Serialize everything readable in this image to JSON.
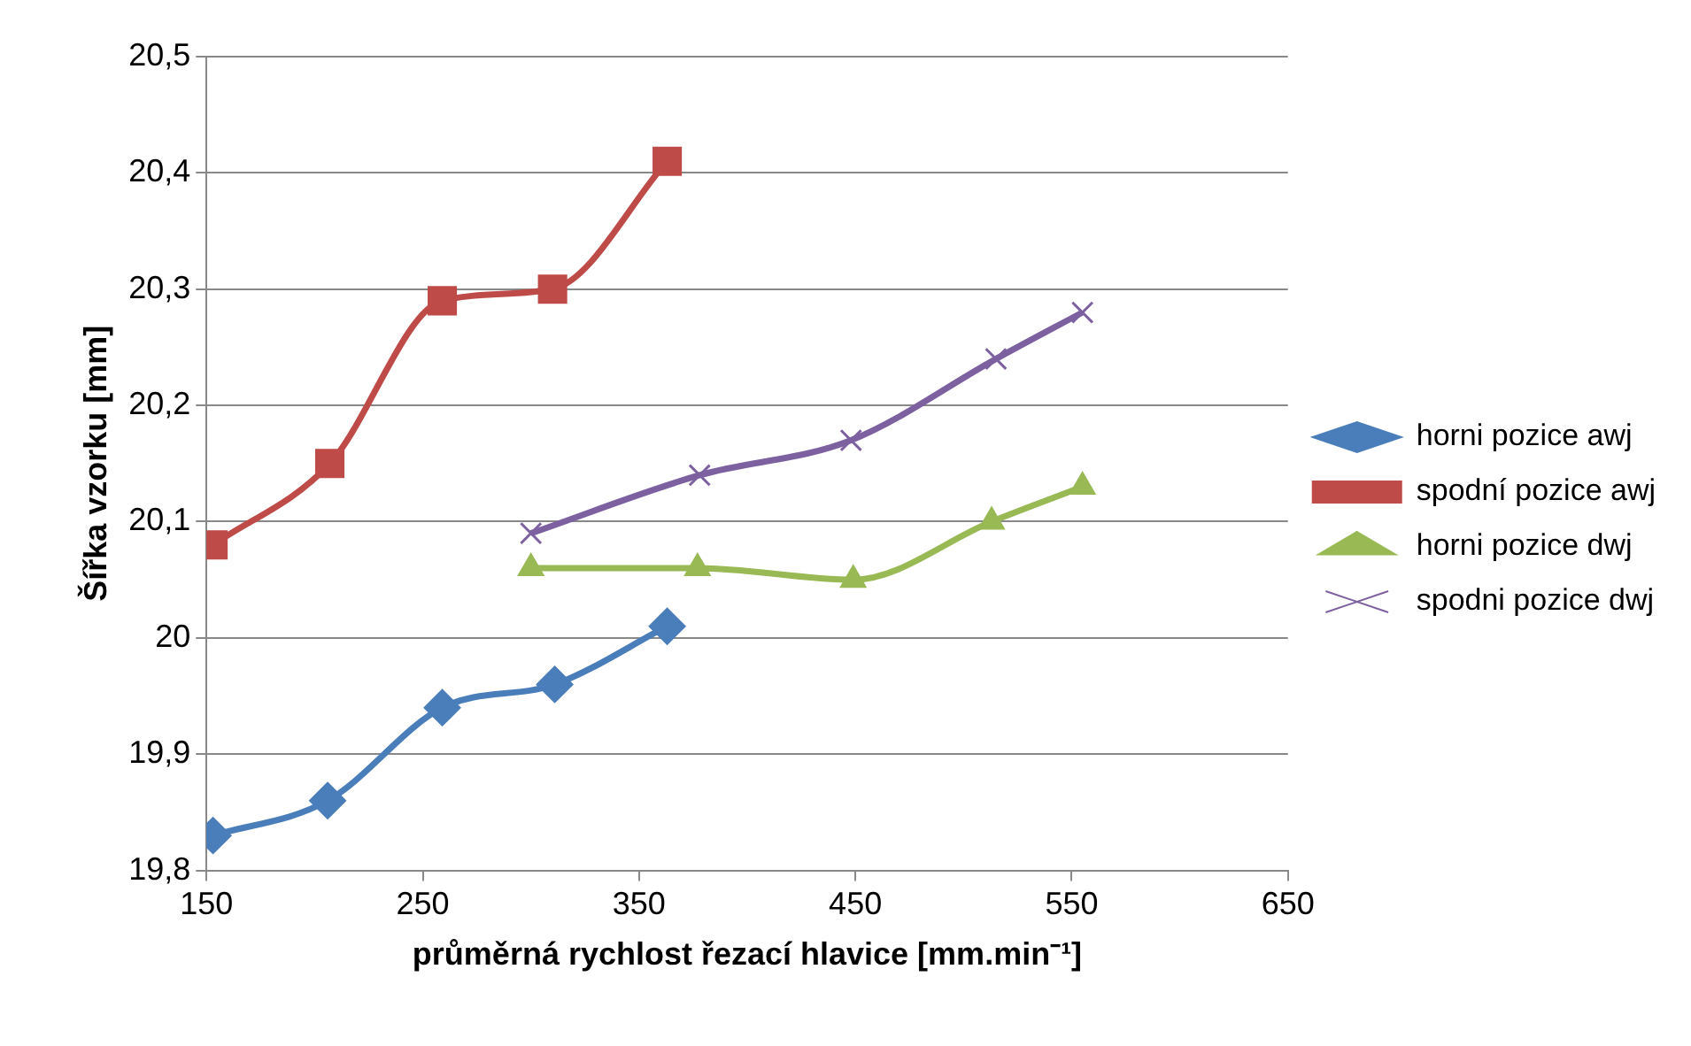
{
  "chart_data": {
    "type": "line",
    "xlabel": "průměrná rychlost řezací hlavice [mm.min⁻¹]",
    "ylabel": "Šířka vzorku [mm]",
    "xlim": [
      150,
      650
    ],
    "xticks": [
      150,
      250,
      350,
      450,
      550,
      650
    ],
    "ylim": [
      19.8,
      20.5
    ],
    "yticks": [
      {
        "value": 19.8,
        "label": "19,8"
      },
      {
        "value": 19.9,
        "label": "19,9"
      },
      20,
      {
        "value": 20.1,
        "label": "20,1"
      },
      {
        "value": 20.2,
        "label": "20,2"
      },
      {
        "value": 20.3,
        "label": "20,3"
      },
      {
        "value": 20.4,
        "label": "20,4"
      },
      {
        "value": 20.5,
        "label": "20,5"
      }
    ],
    "grid": "y",
    "legend": "right",
    "line_style": "solid",
    "series": [
      {
        "name": "horni pozice awj",
        "color": "#4a7ebb",
        "marker": "diamond",
        "x": [
          153,
          206,
          259,
          311,
          363
        ],
        "values": [
          19.83,
          19.86,
          19.94,
          19.96,
          20.01
        ]
      },
      {
        "name": "spodní pozice awj",
        "color": "#be4b48",
        "marker": "square",
        "x": [
          153,
          207,
          259,
          310,
          363
        ],
        "values": [
          20.08,
          20.15,
          20.29,
          20.3,
          20.41
        ]
      },
      {
        "name": "horni pozice dwj",
        "color": "#98b954",
        "marker": "triangle",
        "x": [
          300,
          377,
          449,
          513,
          555
        ],
        "values": [
          20.06,
          20.06,
          20.05,
          20.1,
          20.13
        ]
      },
      {
        "name": "spodni pozice dwj",
        "color": "#7d60a0",
        "marker": "cross",
        "x": [
          300,
          378,
          448,
          515,
          555
        ],
        "values": [
          20.09,
          20.14,
          20.17,
          20.24,
          20.28
        ]
      }
    ]
  }
}
